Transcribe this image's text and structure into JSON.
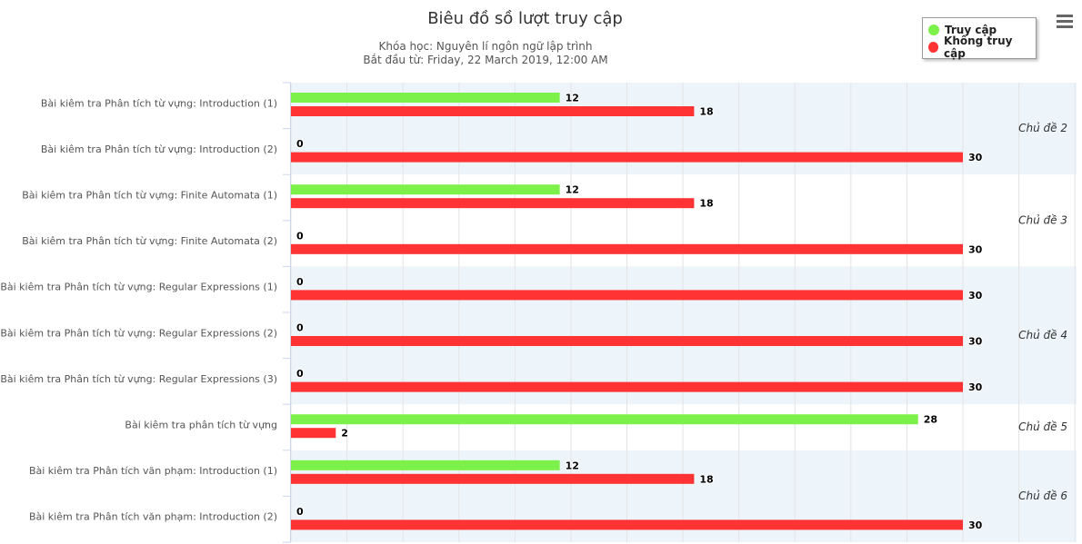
{
  "title": "Biêu đồ sồ lượt truy cập",
  "subtitle_line1": "Khóa học: Nguyên lí ngôn ngữ lập trình",
  "subtitle_line2": "Bắt đầu từ: Friday, 22 March 2019, 12:00 AM",
  "colors": {
    "accessed": "#7cf14a",
    "not_accessed": "#ff3333",
    "band": "#edf5fb"
  },
  "chart_data": {
    "type": "bar",
    "orientation": "horizontal",
    "categories": [
      "Bài kiêm tra Phân tích từ vựng: Introduction (1)",
      "Bài kiêm tra Phân tích từ vựng: Introduction (2)",
      "Bài kiêm tra Phân tích từ vựng: Finite Automata (1)",
      "Bài kiêm tra Phân tích từ vựng: Finite Automata (2)",
      "Bài kiêm tra Phân tích từ vựng: Regular Expressions (1)",
      "Bài kiêm tra Phân tích từ vựng: Regular Expressions (2)",
      "Bài kiêm tra Phân tích từ vựng: Regular Expressions (3)",
      "Bài kiêm tra phân tích từ vựng",
      "Bài kiêm tra Phân tích văn phạm: Introduction (1)",
      "Bài kiêm tra Phân tích văn phạm: Introduction (2)"
    ],
    "series": [
      {
        "name": "Truy cập",
        "color": "#7cf14a",
        "values": [
          12,
          0,
          12,
          0,
          0,
          0,
          0,
          28,
          12,
          0
        ]
      },
      {
        "name": "Không truy cập",
        "color": "#ff3333",
        "values": [
          18,
          30,
          18,
          30,
          30,
          30,
          30,
          2,
          18,
          30
        ]
      }
    ],
    "groups": [
      {
        "label": "Chủ đề 2",
        "categories": 2,
        "shaded": true
      },
      {
        "label": "Chủ đề 3",
        "categories": 2,
        "shaded": false
      },
      {
        "label": "Chủ đề 4",
        "categories": 3,
        "shaded": true
      },
      {
        "label": "Chủ đề 5",
        "categories": 1,
        "shaded": false
      },
      {
        "label": "Chủ đề 6",
        "categories": 2,
        "shaded": true
      }
    ],
    "xlim": [
      0,
      35
    ],
    "grid": true,
    "data_labels": true,
    "legend_position": "top-right"
  }
}
